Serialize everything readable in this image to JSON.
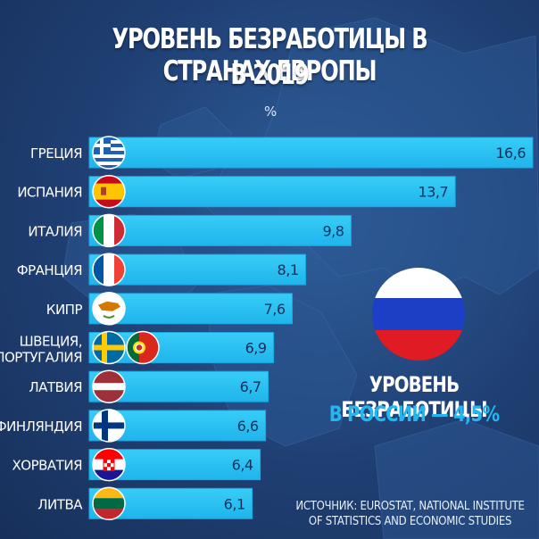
{
  "title_line1": "УРОВЕНЬ БЕЗРАБОТИЦЫ В СТРАНАХ ЕВРОПЫ",
  "title_line2": "В 2019",
  "unit": "%",
  "russia": {
    "line1": "УРОВЕНЬ БЕЗРАБОТИЦЫ",
    "line2": "В РОССИИ — 4,5%"
  },
  "source_line1": "ИСТОЧНИК: EUROSTAT, NATIONAL INSTITUTE",
  "source_line2": "OF STATISTICS AND ECONOMIC STUDIES",
  "colors": {
    "bar": "#27c3f3",
    "bar_edge": "#1aa7df",
    "accent": "#21b7f2"
  },
  "chart_data": {
    "type": "bar",
    "orientation": "horizontal",
    "categories": [
      "ГРЕЦИЯ",
      "ИСПАНИЯ",
      "ИТАЛИЯ",
      "ФРАНЦИЯ",
      "КИПР",
      "ШВЕЦИЯ, ПОРТУГАЛИЯ",
      "ЛАТВИЯ",
      "ФИНЛЯНДИЯ",
      "ХОРВАТИЯ",
      "ЛИТВА"
    ],
    "values": [
      16.6,
      13.7,
      9.8,
      8.1,
      7.6,
      6.9,
      6.7,
      6.6,
      6.4,
      6.1
    ],
    "value_labels": [
      "16,6",
      "13,7",
      "9,8",
      "8,1",
      "7,6",
      "6,9",
      "6,7",
      "6,6",
      "6,4",
      "6,1"
    ],
    "category_lines": [
      [
        "ГРЕЦИЯ"
      ],
      [
        "ИСПАНИЯ"
      ],
      [
        "ИТАЛИЯ"
      ],
      [
        "ФРАНЦИЯ"
      ],
      [
        "КИПР"
      ],
      [
        "ШВЕЦИЯ,",
        "ПОРТУГАЛИЯ"
      ],
      [
        "ЛАТВИЯ"
      ],
      [
        "ФИНЛЯНДИЯ"
      ],
      [
        "ХОРВАТИЯ"
      ],
      [
        "ЛИТВА"
      ]
    ],
    "flags": [
      [
        "greece"
      ],
      [
        "spain"
      ],
      [
        "italy"
      ],
      [
        "france"
      ],
      [
        "cyprus"
      ],
      [
        "sweden",
        "portugal"
      ],
      [
        "latvia"
      ],
      [
        "finland"
      ],
      [
        "croatia"
      ],
      [
        "lithuania"
      ]
    ],
    "xlim": [
      0,
      16.6
    ]
  }
}
